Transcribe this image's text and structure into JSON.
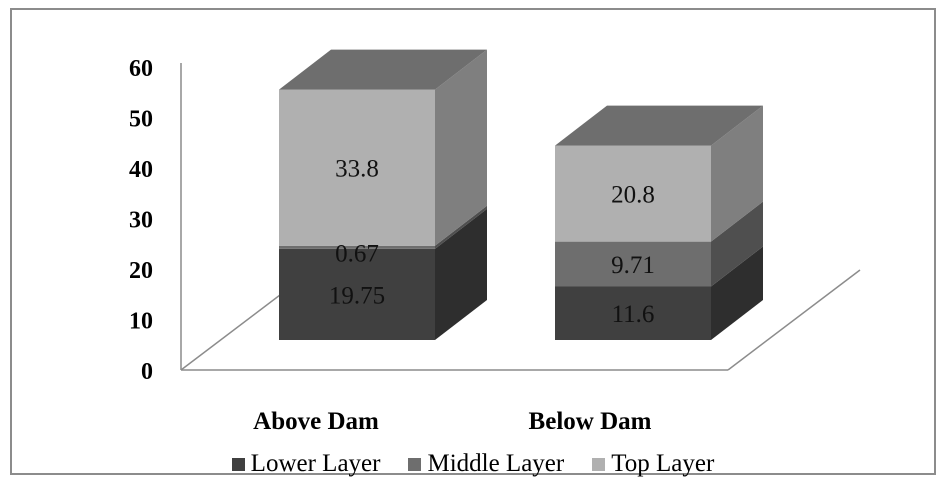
{
  "chart_data": {
    "type": "bar",
    "stacked": true,
    "three_d": true,
    "categories": [
      "Above Dam",
      "Below Dam"
    ],
    "series": [
      {
        "name": "Lower Layer",
        "values": [
          19.75,
          11.6
        ],
        "labels": [
          "19.75",
          "11.6"
        ],
        "color": "#404040"
      },
      {
        "name": "Middle Layer",
        "values": [
          0.67,
          9.71
        ],
        "labels": [
          "0.67",
          "9.71"
        ],
        "color": "#6e6e6e"
      },
      {
        "name": "Top Layer",
        "values": [
          33.8,
          20.8
        ],
        "labels": [
          "33.8",
          "20.8"
        ],
        "color": "#b0b0b0"
      }
    ],
    "ylim": [
      0,
      60
    ],
    "yticks": [
      "0",
      "10",
      "20",
      "30",
      "40",
      "50",
      "60"
    ],
    "grid": false,
    "legend_position": "bottom"
  }
}
